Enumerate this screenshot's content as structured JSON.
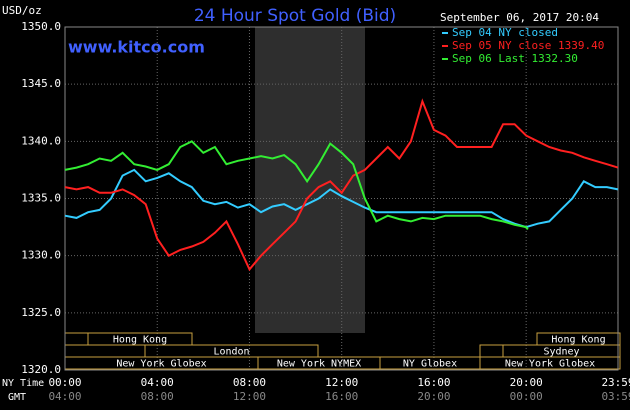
{
  "chart_data": {
    "type": "line",
    "title": "24 Hour Spot Gold (Bid)",
    "subtitle": "www.kitco.com",
    "timestamp": "September 06, 2017 20:04",
    "y_label": "USD/oz",
    "x_label": "NY Time",
    "x2_label": "GMT",
    "ylim": [
      1320,
      1350
    ],
    "yticks": [
      {
        "value": 1320,
        "label": "1320.0"
      },
      {
        "value": 1325,
        "label": "1325.0"
      },
      {
        "value": 1330,
        "label": "1330.0"
      },
      {
        "value": 1335,
        "label": "1335.0"
      },
      {
        "value": 1340,
        "label": "1340.0"
      },
      {
        "value": 1345,
        "label": "1345.0"
      },
      {
        "value": 1350,
        "label": "1350.0"
      }
    ],
    "xlim": [
      0,
      23.983
    ],
    "xticks": [
      {
        "value": 0,
        "label": "00:00"
      },
      {
        "value": 4,
        "label": "04:00"
      },
      {
        "value": 8,
        "label": "08:00"
      },
      {
        "value": 12,
        "label": "12:00"
      },
      {
        "value": 16,
        "label": "16:00"
      },
      {
        "value": 20,
        "label": "20:00"
      },
      {
        "value": 23.983,
        "label": "23:59"
      }
    ],
    "x2ticks": [
      {
        "value": 0,
        "label": "04:00"
      },
      {
        "value": 4,
        "label": "08:00"
      },
      {
        "value": 8,
        "label": "12:00"
      },
      {
        "value": 12,
        "label": "16:00"
      },
      {
        "value": 16,
        "label": "20:00"
      },
      {
        "value": 20,
        "label": "00:00"
      },
      {
        "value": 23.983,
        "label": "03:59"
      }
    ],
    "grid": true,
    "markets": [
      "Hong Kong",
      "London",
      "New York Globex",
      "New York NYMEX",
      "NY Globex",
      "New York Globex",
      "Sydney",
      "Hong Kong"
    ],
    "series": [
      {
        "name": "Sep 04 NY closed",
        "color": "#33ccff",
        "x": [
          0,
          0.5,
          1,
          1.5,
          2,
          2.5,
          3,
          3.5,
          4,
          4.5,
          5,
          5.5,
          6,
          6.5,
          7,
          7.5,
          8,
          8.5,
          9,
          9.5,
          10,
          10.5,
          11,
          11.5,
          12,
          12.5,
          13,
          13.5,
          14,
          14.5,
          15,
          15.5,
          16,
          16.5,
          17,
          17.5,
          18,
          18.5,
          19,
          19.5,
          20,
          20.5,
          21,
          21.5,
          22,
          22.5,
          23,
          23.5,
          23.98
        ],
        "values": [
          1333.5,
          1333.3,
          1333.8,
          1334,
          1335,
          1337,
          1337.5,
          1336.5,
          1336.8,
          1337.2,
          1336.5,
          1336,
          1334.8,
          1334.5,
          1334.7,
          1334.2,
          1334.5,
          1333.8,
          1334.3,
          1334.5,
          1334,
          1334.5,
          1335,
          1335.8,
          1335.2,
          1334.7,
          1334.2,
          1333.8,
          1333.8,
          1333.8,
          1333.8,
          1333.8,
          1333.8,
          1333.8,
          1333.8,
          1333.8,
          1333.8,
          1333.8,
          1333.2,
          1332.8,
          1332.5,
          1332.8,
          1333,
          1334,
          1335,
          1336.5,
          1336,
          1336,
          1335.8
        ]
      },
      {
        "name": "Sep 05 NY close 1339.40",
        "color": "#ff2020",
        "x": [
          0,
          0.5,
          1,
          1.5,
          2,
          2.5,
          3,
          3.5,
          4,
          4.5,
          5,
          5.5,
          6,
          6.5,
          7,
          7.5,
          8,
          8.5,
          9,
          9.5,
          10,
          10.5,
          11,
          11.5,
          12,
          12.5,
          13,
          13.5,
          14,
          14.5,
          15,
          15.5,
          16,
          16.5,
          17,
          17.5,
          18,
          18.5,
          19,
          19.5,
          20,
          20.5,
          21,
          21.5,
          22,
          22.5,
          23,
          23.5,
          23.98
        ],
        "values": [
          1336,
          1335.8,
          1336,
          1335.5,
          1335.5,
          1335.8,
          1335.3,
          1334.5,
          1331.5,
          1330,
          1330.5,
          1330.8,
          1331.2,
          1332,
          1333,
          1331,
          1328.8,
          1330,
          1331,
          1332,
          1333,
          1335,
          1336,
          1336.5,
          1335.5,
          1337,
          1337.5,
          1338.5,
          1339.5,
          1338.5,
          1340,
          1343.5,
          1341,
          1340.5,
          1339.5,
          1339.5,
          1339.5,
          1339.5,
          1341.5,
          1341.5,
          1340.5,
          1340,
          1339.5,
          1339.2,
          1339,
          1338.6,
          1338.3,
          1338,
          1337.7
        ]
      },
      {
        "name": "Sep 06 Last 1332.30",
        "color": "#33ee33",
        "x": [
          0,
          0.5,
          1,
          1.5,
          2,
          2.5,
          3,
          3.5,
          4,
          4.5,
          5,
          5.5,
          6,
          6.5,
          7,
          7.5,
          8,
          8.5,
          9,
          9.5,
          10,
          10.5,
          11,
          11.5,
          12,
          12.5,
          13,
          13.5,
          14,
          14.5,
          15,
          15.5,
          16,
          16.5,
          17,
          17.5,
          18,
          18.5,
          19,
          19.5,
          20,
          20.07
        ],
        "values": [
          1337.5,
          1337.7,
          1338,
          1338.5,
          1338.3,
          1339,
          1338,
          1337.8,
          1337.5,
          1338,
          1339.5,
          1340,
          1339,
          1339.5,
          1338,
          1338.3,
          1338.5,
          1338.7,
          1338.5,
          1338.8,
          1338,
          1336.5,
          1338,
          1339.8,
          1339,
          1338,
          1335,
          1333,
          1333.5,
          1333.2,
          1333,
          1333.3,
          1333.2,
          1333.5,
          1333.5,
          1333.5,
          1333.5,
          1333.2,
          1333,
          1332.7,
          1332.5,
          1332.3
        ]
      }
    ]
  }
}
